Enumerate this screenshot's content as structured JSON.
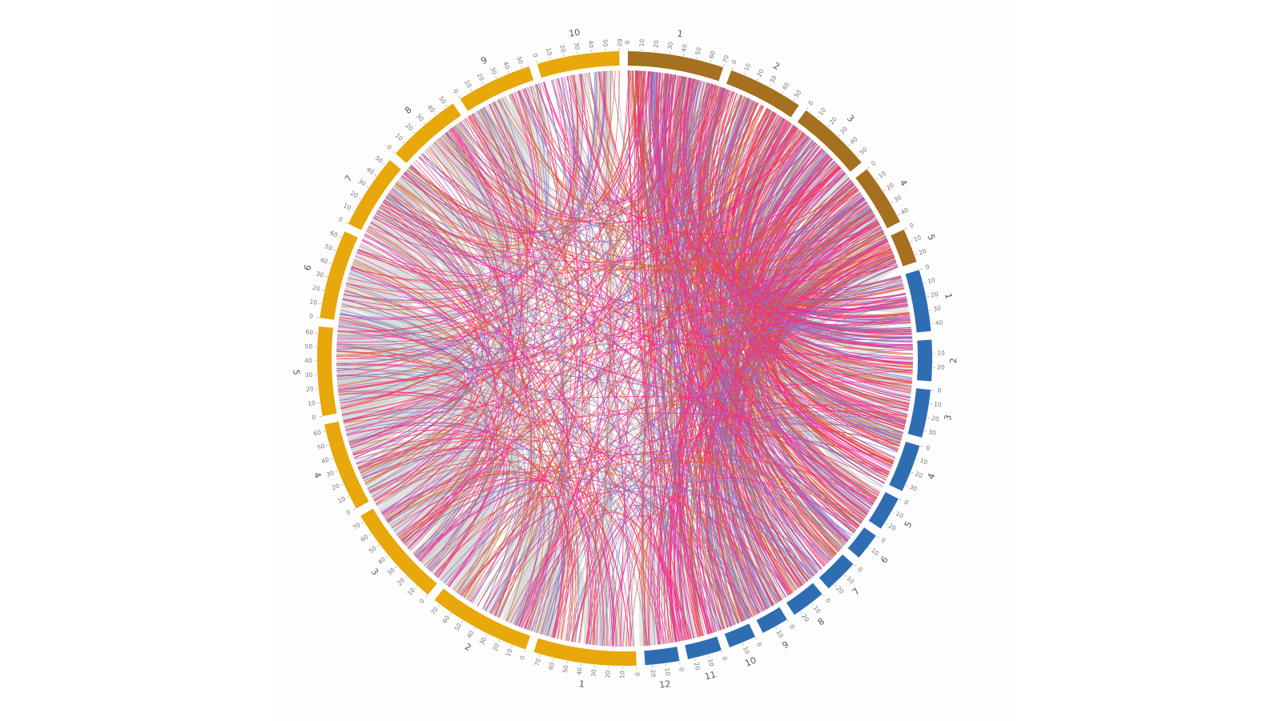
{
  "diagram": {
    "type": "circos",
    "groups": [
      {
        "id": "brown",
        "color": "#a5701f",
        "chromosomes": [
          {
            "label": "1",
            "length": 70,
            "ticks": [
              0,
              10,
              20,
              30,
              40,
              50,
              60,
              70
            ]
          },
          {
            "label": "2",
            "length": 55,
            "ticks": [
              0,
              10,
              20,
              30,
              40,
              50
            ]
          },
          {
            "label": "3",
            "length": 55,
            "ticks": [
              0,
              10,
              20,
              30,
              40,
              50
            ]
          },
          {
            "label": "4",
            "length": 45,
            "ticks": [
              0,
              10,
              20,
              30,
              40
            ]
          },
          {
            "label": "5",
            "length": 25,
            "ticks": [
              0,
              10,
              20
            ]
          }
        ]
      },
      {
        "id": "blue",
        "color": "#2f6db3",
        "chromosomes": [
          {
            "label": "1",
            "length": 45,
            "ticks": [
              0,
              10,
              20,
              30,
              40
            ]
          },
          {
            "label": "2",
            "length": 30,
            "ticks": [
              10,
              20
            ]
          },
          {
            "label": "3",
            "length": 35,
            "ticks": [
              0,
              10,
              20,
              30
            ]
          },
          {
            "label": "4",
            "length": 35,
            "ticks": [
              0,
              10,
              20,
              30
            ]
          },
          {
            "label": "5",
            "length": 25,
            "ticks": [
              0,
              10,
              20
            ]
          },
          {
            "label": "6",
            "length": 20,
            "ticks": [
              0,
              10
            ]
          },
          {
            "label": "7",
            "length": 25,
            "ticks": [
              0,
              10,
              20
            ]
          },
          {
            "label": "8",
            "length": 25,
            "ticks": [
              0,
              10,
              20
            ]
          },
          {
            "label": "9",
            "length": 20,
            "ticks": [
              0,
              10
            ]
          },
          {
            "label": "10",
            "length": 20,
            "ticks": [
              0,
              10
            ]
          },
          {
            "label": "11",
            "length": 25,
            "ticks": [
              0,
              10,
              20
            ]
          },
          {
            "label": "12",
            "length": 25,
            "ticks": [
              0,
              10,
              20
            ]
          }
        ]
      },
      {
        "id": "gold",
        "color": "#e8a70a",
        "chromosomes": [
          {
            "label": "1",
            "length": 75,
            "ticks": [
              0,
              10,
              20,
              30,
              40,
              50,
              60,
              70
            ]
          },
          {
            "label": "2",
            "length": 75,
            "ticks": [
              0,
              10,
              20,
              30,
              40,
              50,
              60,
              70
            ]
          },
          {
            "label": "3",
            "length": 75,
            "ticks": [
              0,
              10,
              20,
              30,
              40,
              50,
              60,
              70
            ]
          },
          {
            "label": "4",
            "length": 65,
            "ticks": [
              0,
              10,
              20,
              30,
              40,
              50,
              60
            ]
          },
          {
            "label": "5",
            "length": 65,
            "ticks": [
              0,
              10,
              20,
              30,
              40,
              50,
              60
            ]
          },
          {
            "label": "6",
            "length": 65,
            "ticks": [
              0,
              10,
              20,
              30,
              40,
              50,
              60
            ]
          },
          {
            "label": "7",
            "length": 55,
            "ticks": [
              0,
              10,
              20,
              30,
              40,
              50
            ]
          },
          {
            "label": "8",
            "length": 55,
            "ticks": [
              0,
              10,
              20,
              30,
              40,
              50
            ]
          },
          {
            "label": "9",
            "length": 55,
            "ticks": [
              0,
              10,
              20,
              30,
              40,
              50
            ]
          },
          {
            "label": "10",
            "length": 60,
            "ticks": [
              0,
              10,
              20,
              30,
              40,
              50,
              60
            ]
          }
        ]
      }
    ],
    "link_colors": [
      "#d9d9d9",
      "#ff1f8e",
      "#e05a2a",
      "#8a76c4",
      "#b0b0b0"
    ],
    "link_color_names": [
      "synteny-gray",
      "pink",
      "orange",
      "purple",
      "gray-line"
    ]
  }
}
